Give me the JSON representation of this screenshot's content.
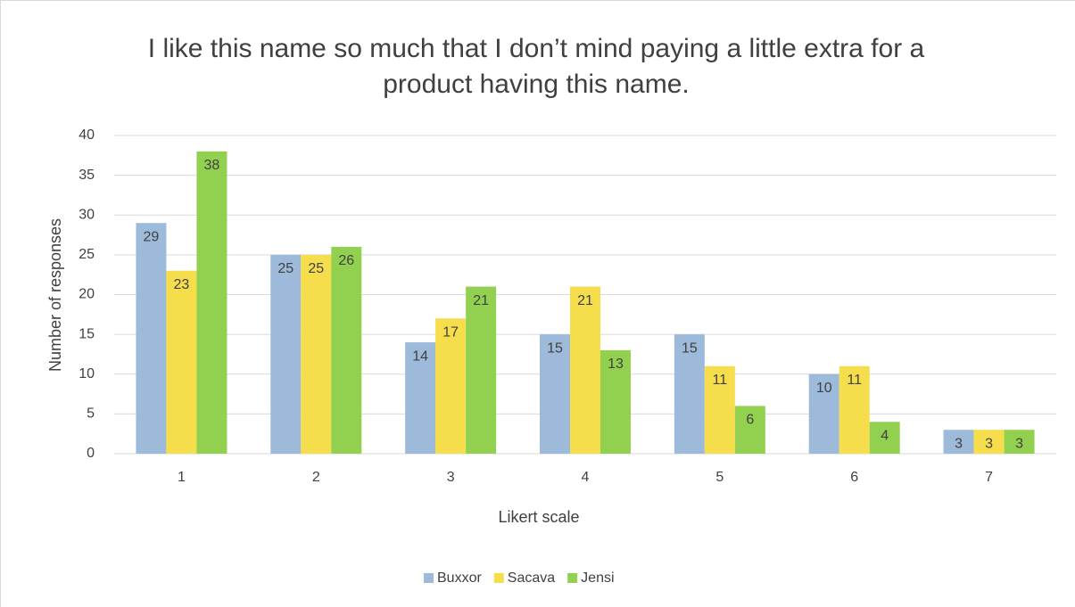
{
  "chart_data": {
    "type": "bar",
    "title": "I like this name so much that I don’t mind paying a little extra for a product having this name.",
    "x_label": "Likert scale",
    "y_label": "Number of responses",
    "categories": [
      "1",
      "2",
      "3",
      "4",
      "5",
      "6",
      "7"
    ],
    "series": [
      {
        "name": "Buxxor",
        "color": "#9dbadb",
        "values": [
          29,
          25,
          14,
          15,
          15,
          10,
          3
        ]
      },
      {
        "name": "Sacava",
        "color": "#f5dd4b",
        "values": [
          23,
          25,
          17,
          21,
          11,
          11,
          3
        ]
      },
      {
        "name": "Jensi",
        "color": "#92d050",
        "values": [
          38,
          26,
          21,
          13,
          6,
          4,
          3
        ]
      }
    ],
    "ylim": [
      0,
      40
    ],
    "yticks": [
      0,
      5,
      10,
      15,
      20,
      25,
      30,
      35,
      40
    ],
    "grid": true,
    "legend": "bottom"
  }
}
